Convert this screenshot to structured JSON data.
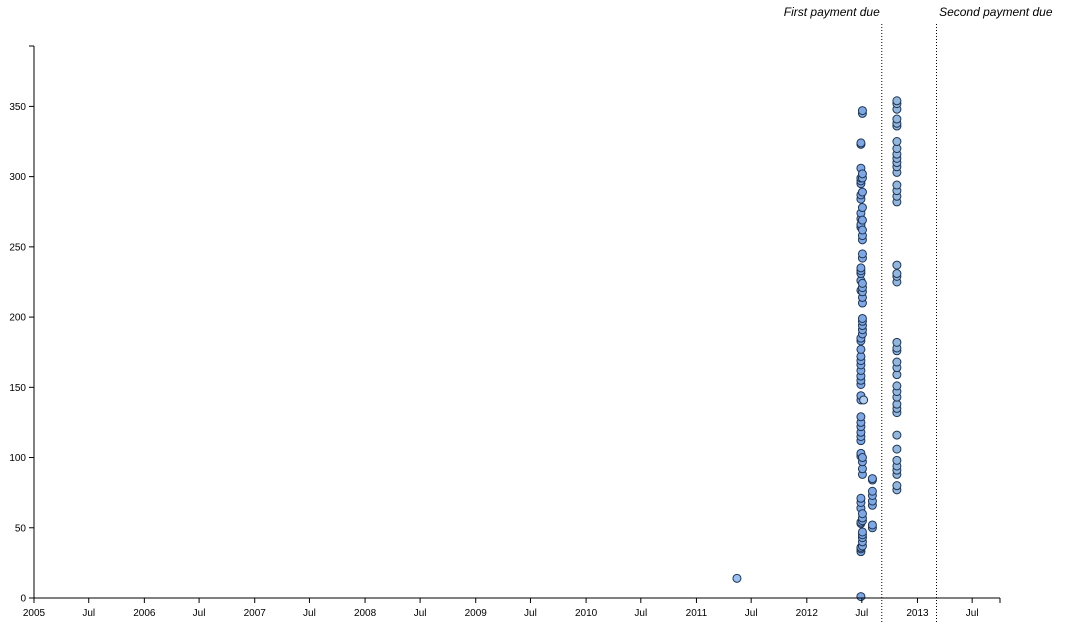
{
  "chart_data": {
    "type": "scatter",
    "x_axis": {
      "kind": "time",
      "range": [
        "2005-01-01",
        "2013-10-01"
      ],
      "tick_labels": [
        {
          "date": "2005-01-01",
          "label": "2005"
        },
        {
          "date": "2005-07-01",
          "label": "Jul"
        },
        {
          "date": "2006-01-01",
          "label": "2006"
        },
        {
          "date": "2006-07-01",
          "label": "Jul"
        },
        {
          "date": "2007-01-01",
          "label": "2007"
        },
        {
          "date": "2007-07-01",
          "label": "Jul"
        },
        {
          "date": "2008-01-01",
          "label": "2008"
        },
        {
          "date": "2008-07-01",
          "label": "Jul"
        },
        {
          "date": "2009-01-01",
          "label": "2009"
        },
        {
          "date": "2009-07-01",
          "label": "Jul"
        },
        {
          "date": "2010-01-01",
          "label": "2010"
        },
        {
          "date": "2010-07-01",
          "label": "Jul"
        },
        {
          "date": "2011-01-01",
          "label": "2011"
        },
        {
          "date": "2011-07-01",
          "label": "Jul"
        },
        {
          "date": "2012-01-01",
          "label": "2012"
        },
        {
          "date": "2012-07-01",
          "label": "Jul"
        },
        {
          "date": "2013-01-01",
          "label": "2013"
        },
        {
          "date": "2013-07-01",
          "label": "Jul"
        }
      ]
    },
    "y_axis": {
      "range": [
        0,
        393
      ],
      "ticks": [
        0,
        50,
        100,
        150,
        200,
        250,
        300,
        350
      ]
    },
    "annotations": [
      {
        "date": "2012-09-05",
        "label": "First payment due"
      },
      {
        "date": "2013-03-05",
        "label": "Second payment due"
      }
    ],
    "point_color": "#7ea7e3",
    "point_stroke": "#1e3553",
    "groups": [
      {
        "date": "2011-05-15",
        "color": "#9cc0ef",
        "y": [
          14
        ]
      },
      {
        "date": "2012-06-28",
        "color": "#7ea7e3",
        "y": [
          1,
          33,
          35,
          36,
          53,
          54,
          64,
          68,
          71,
          101,
          103,
          112,
          115,
          118,
          122,
          125,
          129,
          141,
          144,
          152,
          155,
          158,
          162,
          166,
          169,
          172,
          177,
          183,
          185,
          219,
          226,
          231,
          233,
          235,
          264,
          266,
          270,
          274,
          284,
          287,
          295,
          297,
          299,
          306,
          323,
          324
        ]
      },
      {
        "date": "2012-07-03",
        "color": "#7ea7e3",
        "y": [
          37,
          40,
          43,
          45,
          47,
          55,
          57,
          60,
          88,
          92,
          97,
          100,
          188,
          191,
          194,
          197,
          199,
          210,
          214,
          218,
          221,
          224,
          242,
          245,
          255,
          258,
          262,
          269,
          278,
          289,
          299,
          302,
          345,
          347
        ]
      },
      {
        "date": "2012-07-07",
        "color": "#b4cdf0",
        "y": [
          141
        ]
      },
      {
        "date": "2012-08-05",
        "color": "#7ea7e3",
        "y": [
          50,
          52,
          66,
          69,
          73,
          76,
          84,
          85
        ]
      },
      {
        "date": "2012-10-25",
        "color": "#93b7dc",
        "y": [
          77,
          80,
          88,
          91,
          94,
          98,
          106,
          116,
          132,
          135,
          138,
          143,
          147,
          151,
          159,
          164,
          168,
          176,
          178,
          182,
          225,
          229,
          231,
          237,
          282,
          286,
          290,
          294,
          303,
          307,
          310,
          313,
          316,
          320,
          325,
          336,
          338,
          341,
          348,
          352,
          354
        ]
      }
    ]
  }
}
